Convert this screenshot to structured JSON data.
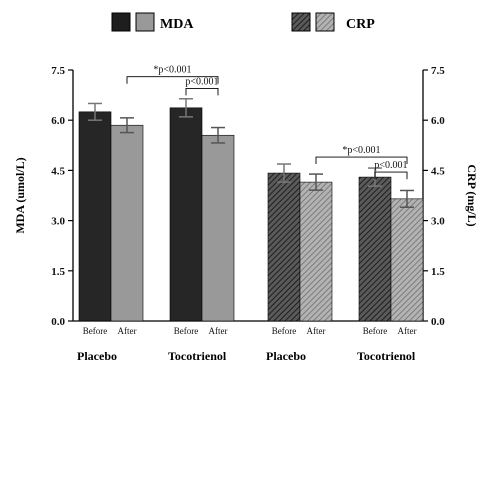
{
  "chart_data": {
    "type": "bar",
    "legend": [
      {
        "label": "MDA",
        "pattern": "solid"
      },
      {
        "label": "CRP",
        "pattern": "hatched"
      }
    ],
    "legend_position": "top",
    "left_axis": {
      "label": "MDA (umol/L)",
      "range": [
        0,
        7.5
      ],
      "ticks": [
        "0.0",
        "1.5",
        "3.0",
        "4.5",
        "6.0",
        "7.5"
      ]
    },
    "right_axis": {
      "label": "CRP (mg/L)",
      "range": [
        0,
        7.5
      ],
      "ticks": [
        "0.0",
        "1.5",
        "3.0",
        "4.5",
        "6.0",
        "7.5"
      ]
    },
    "groups": [
      {
        "label": "Placebo",
        "measure": "MDA",
        "axis": "left"
      },
      {
        "label": "Tocotrienol",
        "measure": "MDA",
        "axis": "left"
      },
      {
        "label": "Placebo",
        "measure": "CRP",
        "axis": "right"
      },
      {
        "label": "Tocotrienol",
        "measure": "CRP",
        "axis": "right"
      }
    ],
    "categories": [
      "Before",
      "After"
    ],
    "bars": [
      {
        "group": 0,
        "category": "Before",
        "value": 6.25,
        "error": 0.25,
        "color": "#262626",
        "pattern": "solid"
      },
      {
        "group": 0,
        "category": "After",
        "value": 5.85,
        "error": 0.22,
        "color": "#999999",
        "pattern": "solid"
      },
      {
        "group": 1,
        "category": "Before",
        "value": 6.37,
        "error": 0.27,
        "color": "#262626",
        "pattern": "solid"
      },
      {
        "group": 1,
        "category": "After",
        "value": 5.55,
        "error": 0.23,
        "color": "#999999",
        "pattern": "solid"
      },
      {
        "group": 2,
        "category": "Before",
        "value": 4.42,
        "error": 0.27,
        "color": "#3a3a3a",
        "pattern": "hatched"
      },
      {
        "group": 2,
        "category": "After",
        "value": 4.15,
        "error": 0.24,
        "color": "#8c8c8c",
        "pattern": "hatched"
      },
      {
        "group": 3,
        "category": "Before",
        "value": 4.3,
        "error": 0.27,
        "color": "#3a3a3a",
        "pattern": "hatched"
      },
      {
        "group": 3,
        "category": "After",
        "value": 3.65,
        "error": 0.25,
        "color": "#8c8c8c",
        "pattern": "hatched"
      }
    ],
    "annotations": [
      {
        "text": "*p<0.001",
        "from_bar": 1,
        "to_bar": 3,
        "level": 7.3
      },
      {
        "text": "p<0.001",
        "from_bar": 2,
        "to_bar": 3,
        "level": 6.95
      },
      {
        "text": "*p<0.001",
        "from_bar": 5,
        "to_bar": 7,
        "level": 4.9
      },
      {
        "text": "p<0.001",
        "from_bar": 6,
        "to_bar": 7,
        "level": 4.45
      }
    ],
    "grid": false
  }
}
